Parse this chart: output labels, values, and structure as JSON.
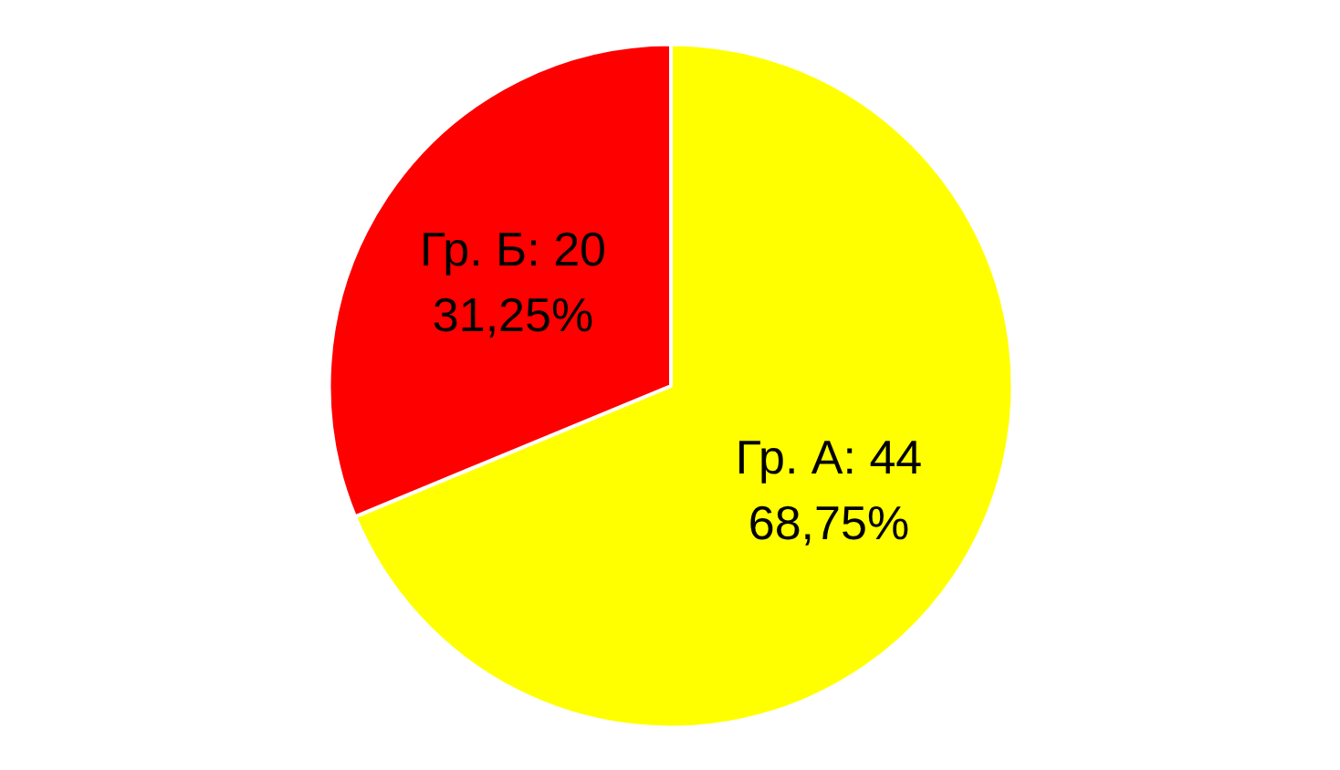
{
  "chart_data": {
    "type": "pie",
    "categories": [
      "Гр. А: 44",
      "Гр. Б: 20"
    ],
    "values": [
      68.75,
      31.25
    ],
    "colors": [
      "#ffff00",
      "#ff0000"
    ],
    "value_labels": [
      "68,75%",
      "31,25%"
    ]
  }
}
